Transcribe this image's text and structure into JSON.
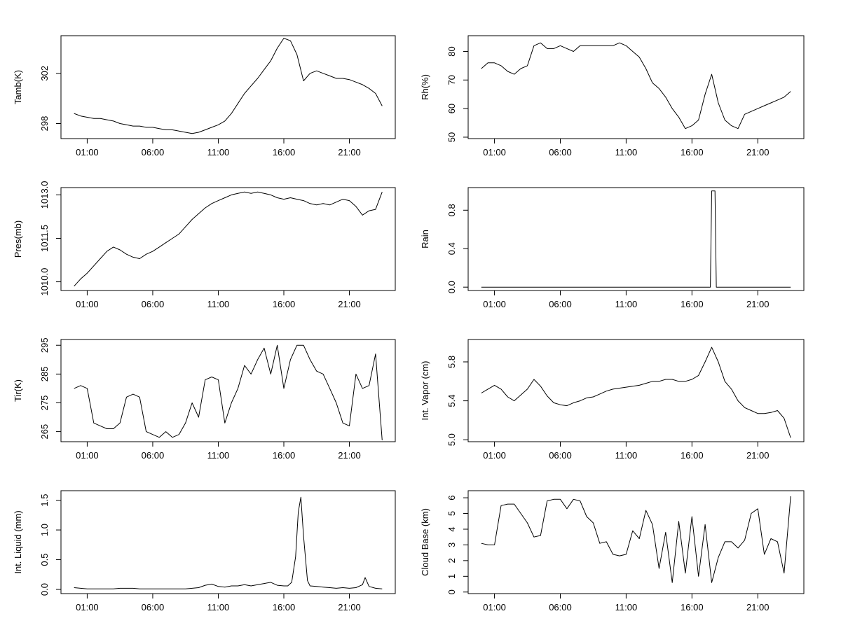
{
  "chart_data": [
    {
      "type": "line",
      "ylabel": "Tamb(K)",
      "xticks": [
        "01:00",
        "06:00",
        "11:00",
        "16:00",
        "21:00"
      ],
      "ytick_labels": [
        "298",
        "302"
      ],
      "ylim": [
        296.8,
        305
      ],
      "x_hours": [
        0,
        0.5,
        1,
        1.5,
        2,
        2.5,
        3,
        3.5,
        4,
        4.5,
        5,
        5.5,
        6,
        6.5,
        7,
        7.5,
        8,
        8.5,
        9,
        9.5,
        10,
        10.5,
        11,
        11.5,
        12,
        12.5,
        13,
        13.5,
        14,
        14.5,
        15,
        15.5,
        16,
        16.5,
        17,
        17.5,
        18,
        18.5,
        19,
        19.5,
        20,
        20.5,
        21,
        21.5,
        22,
        22.5,
        23,
        23.5
      ],
      "values": [
        298.8,
        298.6,
        298.5,
        298.4,
        298.4,
        298.3,
        298.2,
        298.0,
        297.9,
        297.8,
        297.8,
        297.7,
        297.7,
        297.6,
        297.5,
        297.5,
        297.4,
        297.3,
        297.2,
        297.3,
        297.5,
        297.7,
        297.9,
        298.2,
        298.8,
        299.6,
        300.4,
        301.0,
        301.6,
        302.3,
        303.0,
        304.0,
        304.8,
        304.6,
        303.5,
        301.4,
        302.0,
        302.2,
        302.0,
        301.8,
        301.6,
        301.6,
        301.5,
        301.3,
        301.1,
        300.8,
        300.4,
        299.4
      ]
    },
    {
      "type": "line",
      "ylabel": "Rh(%)",
      "xticks": [
        "01:00",
        "06:00",
        "11:00",
        "16:00",
        "21:00"
      ],
      "ytick_labels": [
        "50",
        "60",
        "70",
        "80"
      ],
      "ylim": [
        49.5,
        85.5
      ],
      "x_hours": [
        0,
        0.5,
        1,
        1.5,
        2,
        2.5,
        3,
        3.5,
        4,
        4.5,
        5,
        5.5,
        6,
        6.5,
        7,
        7.5,
        8,
        8.5,
        9,
        9.5,
        10,
        10.5,
        11,
        11.5,
        12,
        12.5,
        13,
        13.5,
        14,
        14.5,
        15,
        15.5,
        16,
        16.5,
        17,
        17.5,
        18,
        18.5,
        19,
        19.5,
        20,
        20.5,
        21,
        21.5,
        22,
        22.5,
        23,
        23.5
      ],
      "values": [
        74,
        76,
        76,
        75,
        73,
        72,
        74,
        75,
        82,
        83,
        81,
        81,
        82,
        81,
        80,
        82,
        82,
        82,
        82,
        82,
        82,
        83,
        82,
        80,
        78,
        74,
        69,
        67,
        64,
        60,
        57,
        53,
        54,
        56,
        65,
        72,
        62,
        56,
        54,
        53,
        58,
        59,
        60,
        61,
        62,
        63,
        64,
        66
      ]
    },
    {
      "type": "line",
      "ylabel": "Pres(mb)",
      "xticks": [
        "01:00",
        "06:00",
        "11:00",
        "16:00",
        "21:00"
      ],
      "ytick_labels": [
        "1010.0",
        "1011.5",
        "1013.0"
      ],
      "ylim": [
        1009.7,
        1013.25
      ],
      "x_hours": [
        0,
        0.5,
        1,
        1.5,
        2,
        2.5,
        3,
        3.5,
        4,
        4.5,
        5,
        5.5,
        6,
        6.5,
        7,
        7.5,
        8,
        8.5,
        9,
        9.5,
        10,
        10.5,
        11,
        11.5,
        12,
        12.5,
        13,
        13.5,
        14,
        14.5,
        15,
        15.5,
        16,
        16.5,
        17,
        17.5,
        18,
        18.5,
        19,
        19.5,
        20,
        20.5,
        21,
        21.5,
        22,
        22.5,
        23,
        23.5
      ],
      "values": [
        1009.85,
        1010.1,
        1010.3,
        1010.55,
        1010.8,
        1011.05,
        1011.2,
        1011.1,
        1010.95,
        1010.85,
        1010.8,
        1010.95,
        1011.05,
        1011.2,
        1011.35,
        1011.5,
        1011.65,
        1011.9,
        1012.15,
        1012.35,
        1012.55,
        1012.7,
        1012.8,
        1012.9,
        1013.0,
        1013.05,
        1013.1,
        1013.05,
        1013.1,
        1013.05,
        1013.0,
        1012.9,
        1012.85,
        1012.9,
        1012.85,
        1012.8,
        1012.7,
        1012.65,
        1012.7,
        1012.65,
        1012.75,
        1012.85,
        1012.8,
        1012.6,
        1012.3,
        1012.45,
        1012.5,
        1013.1
      ]
    },
    {
      "type": "line",
      "ylabel": "Rain",
      "xticks": [
        "01:00",
        "06:00",
        "11:00",
        "16:00",
        "21:00"
      ],
      "ytick_labels": [
        "0.0",
        "0.4",
        "0.8"
      ],
      "ylim": [
        -0.035,
        1.035
      ],
      "x_hours": [
        0,
        17.4,
        17.5,
        17.75,
        17.85,
        23.5
      ],
      "values": [
        0,
        0,
        1,
        1,
        0,
        0
      ]
    },
    {
      "type": "line",
      "ylabel": "Tir(K)",
      "xticks": [
        "01:00",
        "06:00",
        "11:00",
        "16:00",
        "21:00"
      ],
      "ytick_labels": [
        "265",
        "275",
        "285",
        "295"
      ],
      "ylim": [
        261.5,
        297
      ],
      "x_hours": [
        0,
        0.5,
        1,
        1.5,
        2,
        2.5,
        3,
        3.5,
        4,
        4.5,
        5,
        5.5,
        6,
        6.5,
        7,
        7.5,
        8,
        8.5,
        9,
        9.5,
        10,
        10.5,
        11,
        11.5,
        12,
        12.5,
        13,
        13.5,
        14,
        14.5,
        15,
        15.5,
        16,
        16.5,
        17,
        17.5,
        18,
        18.5,
        19,
        19.5,
        20,
        20.5,
        21,
        21.5,
        22,
        22.5,
        23,
        23.5
      ],
      "values": [
        280,
        281,
        280,
        268,
        267,
        266,
        266,
        268,
        277,
        278,
        277,
        265,
        264,
        263,
        265,
        263,
        264,
        268,
        275,
        270,
        283,
        284,
        283,
        268,
        275,
        280,
        288,
        285,
        290,
        294,
        285,
        295,
        280,
        290,
        295,
        295,
        290,
        286,
        285,
        280,
        275,
        268,
        267,
        285,
        280,
        281,
        292,
        262
      ]
    },
    {
      "type": "line",
      "ylabel": "Int. Vapor (cm)",
      "xticks": [
        "01:00",
        "06:00",
        "11:00",
        "16:00",
        "21:00"
      ],
      "ytick_labels": [
        "5.0",
        "5.4",
        "5.8"
      ],
      "ylim": [
        4.98,
        6.03
      ],
      "x_hours": [
        0,
        0.5,
        1,
        1.5,
        2,
        2.5,
        3,
        3.5,
        4,
        4.5,
        5,
        5.5,
        6,
        6.5,
        7,
        7.5,
        8,
        8.5,
        9,
        9.5,
        10,
        10.5,
        11,
        11.5,
        12,
        12.5,
        13,
        13.5,
        14,
        14.5,
        15,
        15.5,
        16,
        16.5,
        17,
        17.5,
        18,
        18.5,
        19,
        19.5,
        20,
        20.5,
        21,
        21.5,
        22,
        22.5,
        23,
        23.5
      ],
      "values": [
        5.48,
        5.52,
        5.56,
        5.52,
        5.44,
        5.4,
        5.46,
        5.52,
        5.62,
        5.55,
        5.45,
        5.38,
        5.36,
        5.35,
        5.38,
        5.4,
        5.43,
        5.44,
        5.47,
        5.5,
        5.52,
        5.53,
        5.54,
        5.55,
        5.56,
        5.58,
        5.6,
        5.6,
        5.62,
        5.62,
        5.6,
        5.6,
        5.62,
        5.66,
        5.8,
        5.95,
        5.8,
        5.6,
        5.52,
        5.4,
        5.33,
        5.3,
        5.27,
        5.27,
        5.28,
        5.3,
        5.22,
        5.02
      ]
    },
    {
      "type": "line",
      "ylabel": "Int. Liquid (mm)",
      "xticks": [
        "01:00",
        "06:00",
        "11:00",
        "16:00",
        "21:00"
      ],
      "ytick_labels": [
        "0.0",
        "0.5",
        "1.0",
        "1.5"
      ],
      "ylim": [
        -0.07,
        1.66
      ],
      "x_hours": [
        0,
        0.5,
        1,
        1.5,
        2,
        2.5,
        3,
        3.5,
        4,
        4.5,
        5,
        5.5,
        6,
        6.5,
        7,
        7.5,
        8,
        8.5,
        9,
        9.5,
        10,
        10.5,
        11,
        11.5,
        12,
        12.5,
        13,
        13.5,
        14,
        14.5,
        15,
        15.5,
        16,
        16.3,
        16.6,
        16.9,
        17.1,
        17.3,
        17.5,
        17.8,
        18,
        18.5,
        19,
        19.5,
        20,
        20.5,
        21,
        21.5,
        22,
        22.2,
        22.5,
        23,
        23.5
      ],
      "values": [
        0.03,
        0.02,
        0.01,
        0.01,
        0.01,
        0.01,
        0.01,
        0.02,
        0.02,
        0.02,
        0.01,
        0.01,
        0.01,
        0.01,
        0.01,
        0.01,
        0.01,
        0.01,
        0.02,
        0.03,
        0.07,
        0.09,
        0.05,
        0.04,
        0.06,
        0.06,
        0.08,
        0.06,
        0.08,
        0.1,
        0.12,
        0.07,
        0.06,
        0.06,
        0.12,
        0.55,
        1.3,
        1.55,
        0.9,
        0.15,
        0.06,
        0.05,
        0.04,
        0.03,
        0.02,
        0.03,
        0.02,
        0.03,
        0.08,
        0.2,
        0.05,
        0.02,
        0.01
      ]
    },
    {
      "type": "line",
      "ylabel": "Cloud Base (km)",
      "xticks": [
        "01:00",
        "06:00",
        "11:00",
        "16:00",
        "21:00"
      ],
      "ytick_labels": [
        "0",
        "1",
        "2",
        "3",
        "4",
        "5",
        "6"
      ],
      "ylim": [
        -0.1,
        6.45
      ],
      "x_hours": [
        0,
        0.5,
        1,
        1.5,
        2,
        2.5,
        3,
        3.5,
        4,
        4.5,
        5,
        5.5,
        6,
        6.5,
        7,
        7.5,
        8,
        8.5,
        9,
        9.5,
        10,
        10.5,
        11,
        11.5,
        12,
        12.5,
        13,
        13.5,
        14,
        14.5,
        15,
        15.5,
        16,
        16.5,
        17,
        17.5,
        18,
        18.5,
        19,
        19.5,
        20,
        20.5,
        21,
        21.5,
        22,
        22.5,
        23,
        23.5
      ],
      "values": [
        3.1,
        3.0,
        3.0,
        5.5,
        5.6,
        5.6,
        5.0,
        4.4,
        3.5,
        3.6,
        5.8,
        5.9,
        5.9,
        5.3,
        5.9,
        5.8,
        4.8,
        4.4,
        3.1,
        3.2,
        2.4,
        2.3,
        2.4,
        3.9,
        3.4,
        5.2,
        4.3,
        1.5,
        3.8,
        0.6,
        4.5,
        1.2,
        4.8,
        1.0,
        4.3,
        0.6,
        2.2,
        3.2,
        3.2,
        2.8,
        3.3,
        5.0,
        5.3,
        2.4,
        3.4,
        3.2,
        1.2,
        6.1
      ]
    }
  ]
}
